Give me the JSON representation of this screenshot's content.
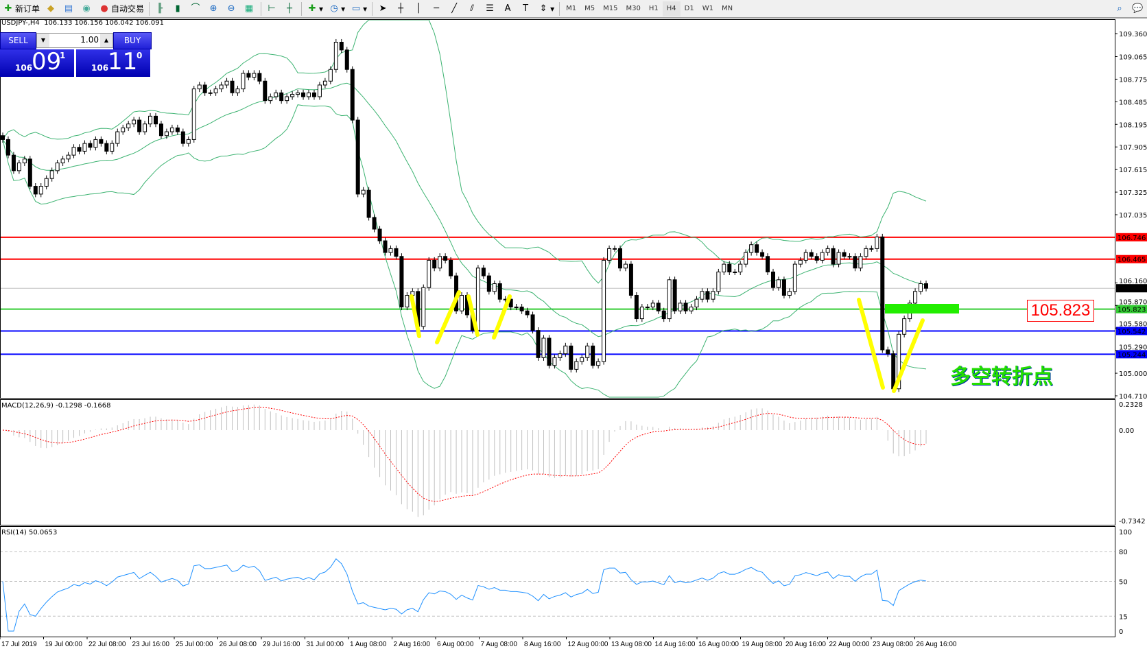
{
  "toolbar": {
    "new_order": "新订单",
    "auto_trading": "自动交易",
    "icons": [
      "new-order-icon",
      "history-icon",
      "terminal-icon",
      "signal-icon",
      "auto-trading-icon",
      "bar-chart-icon",
      "candlestick-icon",
      "line-chart-icon",
      "zoom-in-icon",
      "zoom-out-icon",
      "tile-icon",
      "autoscroll-icon",
      "chart-shift-icon",
      "indicators-icon",
      "periods-icon",
      "templates-icon",
      "cursor-icon",
      "crosshair-icon",
      "vertical-line-icon",
      "horizontal-line-icon",
      "trendline-icon",
      "equidistant-channel-icon",
      "fibonacci-icon",
      "text-icon",
      "text-label-icon",
      "arrows-icon",
      "search-icon",
      "chat-icon"
    ],
    "timeframes": [
      "M1",
      "M5",
      "M15",
      "M30",
      "H1",
      "H4",
      "D1",
      "W1",
      "MN"
    ],
    "active_timeframe": "H4"
  },
  "chart": {
    "symbol_info": "USDJPY-,H4  106.133 106.156 106.042 106.091",
    "trade": {
      "sell": "SELL",
      "buy": "BUY",
      "lot": "1.00",
      "bid_prefix": "106",
      "bid_big": "09",
      "bid_sup": "1",
      "ask_prefix": "106",
      "ask_big": "11",
      "ask_sup": "0"
    },
    "annotation_price": "105.823",
    "annotation_text": "多空转折点"
  },
  "chart_data": {
    "type": "candlestick",
    "ylim": [
      104.71,
      109.36
    ],
    "price_ticks": [
      "109.360",
      "109.065",
      "108.775",
      "108.485",
      "108.195",
      "107.905",
      "107.615",
      "107.325",
      "107.035",
      "106.160",
      "105.870",
      "105.580",
      "105.290",
      "105.000",
      "104.710"
    ],
    "price_tick_values": [
      109.36,
      109.065,
      108.775,
      108.485,
      108.195,
      107.905,
      107.615,
      107.325,
      107.035,
      106.16,
      105.87,
      105.58,
      105.29,
      105.0,
      104.71
    ],
    "levels": [
      {
        "value": 106.746,
        "label": "106.746",
        "color": "#ff0000"
      },
      {
        "value": 106.465,
        "label": "106.465",
        "color": "#ff0000"
      },
      {
        "value": 106.091,
        "label": "106.091",
        "color": "#c0c0c0",
        "label_bg": "#000000"
      },
      {
        "value": 105.823,
        "label": "105.823",
        "color": "#33cc33"
      },
      {
        "value": 105.542,
        "label": "105.542",
        "color": "#0000ff"
      },
      {
        "value": 105.244,
        "label": "105.244",
        "color": "#0000ff"
      }
    ],
    "time_labels": [
      "17 Jul 2019",
      "19 Jul 00:00",
      "22 Jul 08:00",
      "23 Jul 16:00",
      "25 Jul 00:00",
      "26 Jul 08:00",
      "29 Jul 16:00",
      "31 Jul 00:00",
      "1 Aug 08:00",
      "2 Aug 16:00",
      "6 Aug 00:00",
      "7 Aug 08:00",
      "8 Aug 16:00",
      "12 Aug 00:00",
      "13 Aug 08:00",
      "14 Aug 16:00",
      "16 Aug 00:00",
      "19 Aug 08:00",
      "20 Aug 16:00",
      "22 Aug 00:00",
      "23 Aug 08:00",
      "26 Aug 16:00"
    ],
    "closes": [
      108.0,
      107.8,
      107.6,
      107.7,
      107.75,
      107.4,
      107.3,
      107.4,
      107.5,
      107.6,
      107.7,
      107.75,
      107.8,
      107.9,
      107.85,
      107.95,
      107.9,
      108.0,
      107.95,
      107.85,
      107.95,
      108.1,
      108.15,
      108.2,
      108.25,
      108.1,
      108.2,
      108.3,
      108.2,
      108.05,
      108.1,
      108.15,
      108.1,
      107.95,
      108.0,
      108.65,
      108.7,
      108.6,
      108.6,
      108.65,
      108.7,
      108.75,
      108.6,
      108.65,
      108.85,
      108.8,
      108.85,
      108.75,
      108.5,
      108.55,
      108.6,
      108.5,
      108.55,
      108.58,
      108.6,
      108.55,
      108.6,
      108.55,
      108.7,
      108.75,
      108.9,
      109.25,
      109.15,
      108.9,
      108.25,
      107.3,
      107.35,
      107.0,
      106.85,
      106.7,
      106.55,
      106.6,
      106.5,
      105.85,
      106.0,
      106.05,
      105.6,
      106.1,
      106.45,
      106.35,
      106.5,
      106.45,
      106.25,
      105.8,
      106.0,
      105.75,
      105.55,
      106.35,
      106.25,
      106.05,
      106.15,
      105.95,
      105.95,
      105.85,
      105.85,
      105.8,
      105.75,
      105.55,
      105.2,
      105.45,
      105.1,
      105.2,
      105.25,
      105.35,
      105.05,
      105.15,
      105.2,
      105.35,
      105.1,
      105.15,
      106.45,
      106.6,
      106.6,
      106.35,
      106.4,
      106.0,
      105.7,
      105.85,
      105.85,
      105.9,
      105.8,
      105.7,
      106.2,
      105.8,
      105.9,
      105.8,
      105.85,
      105.95,
      106.05,
      105.95,
      106.05,
      106.3,
      106.4,
      106.3,
      106.3,
      106.4,
      106.55,
      106.65,
      106.55,
      106.5,
      106.3,
      106.1,
      106.2,
      106.0,
      106.05,
      106.4,
      106.45,
      106.55,
      106.5,
      106.45,
      106.55,
      106.6,
      106.4,
      106.55,
      106.5,
      106.5,
      106.35,
      106.5,
      106.6,
      106.6,
      106.75,
      105.3,
      105.25,
      104.8,
      105.5,
      105.7,
      105.9,
      106.05,
      106.15,
      106.091
    ],
    "bollinger_color": "#3cb371",
    "macd": {
      "label": "MACD(12,26,9) -0.1298 -0.1668",
      "ticks": [
        "0.2328",
        "0.00",
        "-0.7342"
      ],
      "tick_values": [
        0.2328,
        0,
        -0.7342
      ],
      "signal_color": "#ff0000",
      "hist_color": "#c0c0c0"
    },
    "rsi": {
      "label": "RSI(14) 50.0653",
      "ticks": [
        "100",
        "80",
        "50",
        "15",
        "0"
      ],
      "tick_values": [
        100,
        80,
        50,
        15,
        0
      ],
      "color": "#1e90ff"
    }
  }
}
